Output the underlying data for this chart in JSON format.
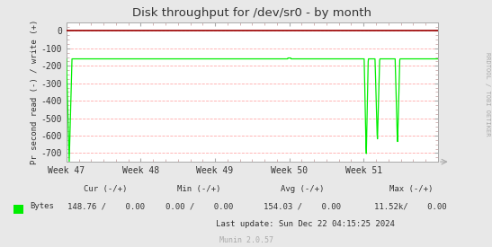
{
  "title": "Disk throughput for /dev/sr0 - by month",
  "ylabel": "Pr second read (-) / write (+)",
  "background_color": "#e8e8e8",
  "plot_bg_color": "#ffffff",
  "grid_color": "#ffaaaa",
  "border_color": "#aaaaaa",
  "ylim": [
    -750,
    50
  ],
  "yticks": [
    0,
    -100,
    -200,
    -300,
    -400,
    -500,
    -600,
    -700
  ],
  "week_labels": [
    "Week 47",
    "Week 48",
    "Week 49",
    "Week 50",
    "Week 51"
  ],
  "title_color": "#333333",
  "line_color": "#00ee00",
  "top_line_color": "#990000",
  "right_label": "RRDTOOL / TOBI OETIKER",
  "legend_label": "Bytes",
  "last_update": "Last update: Sun Dec 22 04:15:25 2024",
  "munin_version": "Munin 2.0.57",
  "flat_level": -160
}
